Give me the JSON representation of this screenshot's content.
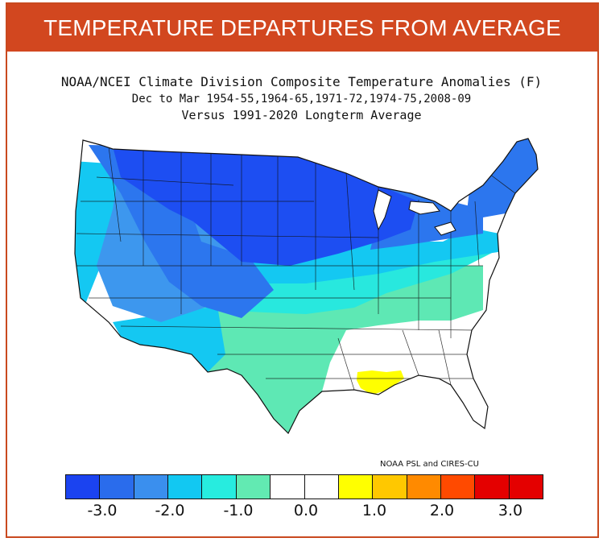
{
  "banner": {
    "title": "TEMPERATURE DEPARTURES FROM AVERAGE"
  },
  "map": {
    "title_line1": "NOAA/NCEI Climate Division Composite Temperature Anomalies (F)",
    "title_line2": "Dec to Mar  1954-55,1964-65,1971-72,1974-75,2008-09",
    "title_line3": "Versus 1991-2020 Longterm Average",
    "credit": "NOAA PSL and CIRES-CU",
    "regions": [
      {
        "name": "upper-midwest-northern-plains",
        "anomaly_bin": "<= -3.0",
        "color": "#1d4ef2"
      },
      {
        "name": "northern-rockies-mid-atlantic-north",
        "anomaly_bin": "-3.0 to -2.5",
        "color": "#2c76ee"
      },
      {
        "name": "northeast",
        "anomaly_bin": "-3.0 to -2.5",
        "color": "#2c76ee"
      },
      {
        "name": "intermountain-west",
        "anomaly_bin": "-2.5 to -2.0",
        "color": "#3d97ee"
      },
      {
        "name": "pacific-coast-central-plains",
        "anomaly_bin": "-2.0 to -1.5",
        "color": "#14c8f2"
      },
      {
        "name": "ohio-valley-southern-plains",
        "anomaly_bin": "-1.5 to -1.0",
        "color": "#28e8de"
      },
      {
        "name": "tennessee-valley-texas",
        "anomaly_bin": "-1.0 to -0.5",
        "color": "#5ee8b4"
      },
      {
        "name": "southeast-gulf-coast",
        "anomaly_bin": "-0.5 to 0.5",
        "color": "#ffffff"
      },
      {
        "name": "southern-louisiana",
        "anomaly_bin": "0.5 to 1.0",
        "color": "#ffff00"
      }
    ]
  },
  "legend": {
    "colors": [
      "#1b43f0",
      "#2a6cec",
      "#3a8fee",
      "#12c8f2",
      "#27ecdf",
      "#62eab2",
      "#ffffff",
      "#ffffff",
      "#ffff00",
      "#ffc800",
      "#ff8a00",
      "#ff4a00",
      "#e40000"
    ],
    "tick_labels": [
      "-3.0",
      "-2.0",
      "-1.0",
      "0.0",
      "1.0",
      "2.0",
      "3.0"
    ]
  }
}
